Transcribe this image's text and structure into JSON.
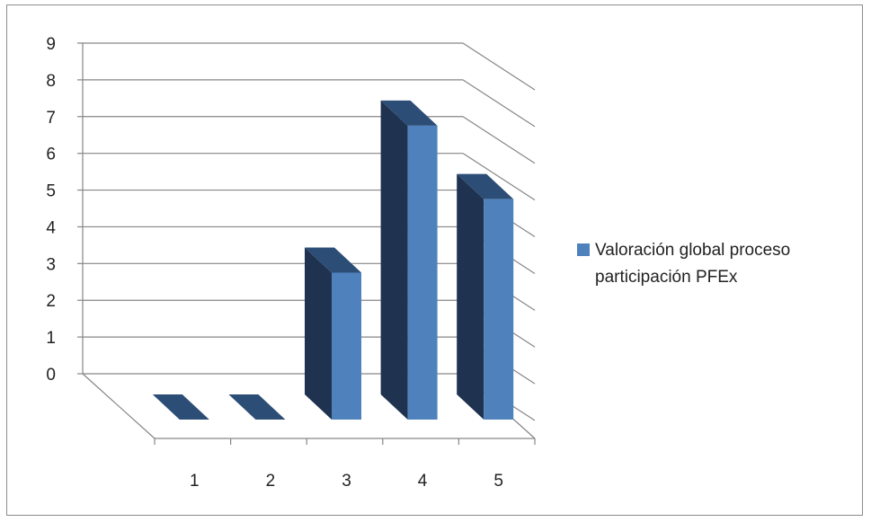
{
  "chart_data": {
    "type": "bar",
    "categories": [
      "1",
      "2",
      "3",
      "4",
      "5"
    ],
    "series": [
      {
        "name": "Valoración global proceso participación PFEx",
        "values": [
          0,
          0,
          4,
          8,
          6
        ]
      }
    ],
    "ylim": [
      0,
      9
    ],
    "y_ticks": [
      "0",
      "1",
      "2",
      "3",
      "4",
      "5",
      "6",
      "7",
      "8",
      "9"
    ],
    "grid": true,
    "legend_position": "right",
    "three_d": true,
    "colors": {
      "front": "#4f81bd",
      "side": "#1f3350",
      "top": "#2c4d75",
      "grid": "#868686",
      "axis": "#868686"
    }
  }
}
